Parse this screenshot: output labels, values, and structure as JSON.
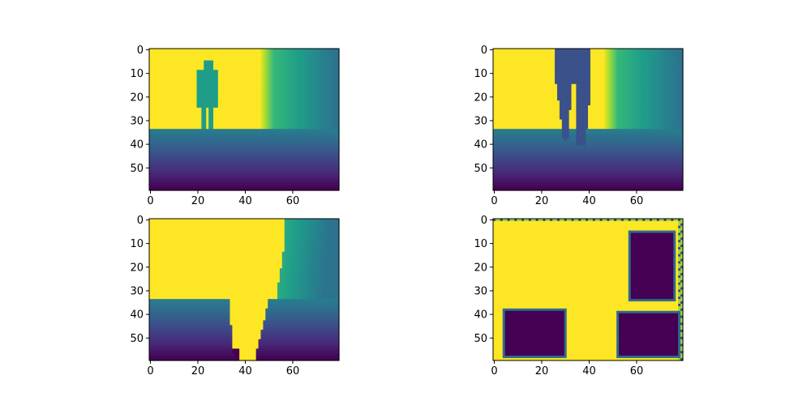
{
  "colors": {
    "viridis_stops": [
      "#440154",
      "#482878",
      "#3e4989",
      "#31688e",
      "#26828e",
      "#1f9e89",
      "#35b779",
      "#6ece58",
      "#b5de2b",
      "#fde725"
    ],
    "axes_edge": "#000000",
    "background": "#ffffff"
  },
  "chart_data": [
    {
      "type": "heatmap",
      "title": "",
      "grid": false,
      "image_shape": [
        60,
        80
      ],
      "xlim": [
        -0.5,
        79.5
      ],
      "ylim": [
        59.5,
        -0.5
      ],
      "xticks": [
        0,
        20,
        40,
        60
      ],
      "yticks": [
        0,
        10,
        20,
        30,
        40,
        50
      ],
      "scene": {
        "kind": "depth_person",
        "horizon_row": 34,
        "person": {
          "cols": [
            20,
            29
          ],
          "rows": [
            5,
            33
          ],
          "value": 0.55
        }
      }
    },
    {
      "type": "heatmap",
      "title": "",
      "grid": false,
      "image_shape": [
        60,
        80
      ],
      "xlim": [
        -0.5,
        79.5
      ],
      "ylim": [
        59.5,
        -0.5
      ],
      "xticks": [
        0,
        20,
        40,
        60
      ],
      "yticks": [
        0,
        10,
        20,
        30,
        40,
        50
      ],
      "scene": {
        "kind": "depth_legs",
        "horizon_row": 34,
        "legs": {
          "cols": [
            26,
            42
          ],
          "rows": [
            0,
            40
          ],
          "value": 0.25
        }
      }
    },
    {
      "type": "heatmap",
      "title": "",
      "grid": false,
      "image_shape": [
        60,
        80
      ],
      "xlim": [
        -0.5,
        79.5
      ],
      "ylim": [
        59.5,
        -0.5
      ],
      "xticks": [
        0,
        20,
        40,
        60
      ],
      "yticks": [
        0,
        10,
        20,
        30,
        40,
        50
      ],
      "scene": {
        "kind": "depth_wedge",
        "horizon_row": 34,
        "wedge": {
          "top_col": 58,
          "bottom_cols": [
            40,
            46
          ]
        }
      }
    },
    {
      "type": "heatmap",
      "title": "",
      "grid": false,
      "image_shape": [
        60,
        80
      ],
      "xlim": [
        -0.5,
        79.5
      ],
      "ylim": [
        59.5,
        -0.5
      ],
      "xticks": [
        0,
        20,
        40,
        60
      ],
      "yticks": [
        0,
        10,
        20,
        30,
        40,
        50
      ],
      "scene": {
        "kind": "blocks",
        "blocks": [
          {
            "cols": [
              57,
              76
            ],
            "rows": [
              5,
              34
            ]
          },
          {
            "cols": [
              4,
              30
            ],
            "rows": [
              38,
              58
            ]
          },
          {
            "cols": [
              52,
              78
            ],
            "rows": [
              39,
              58
            ]
          }
        ]
      }
    }
  ]
}
